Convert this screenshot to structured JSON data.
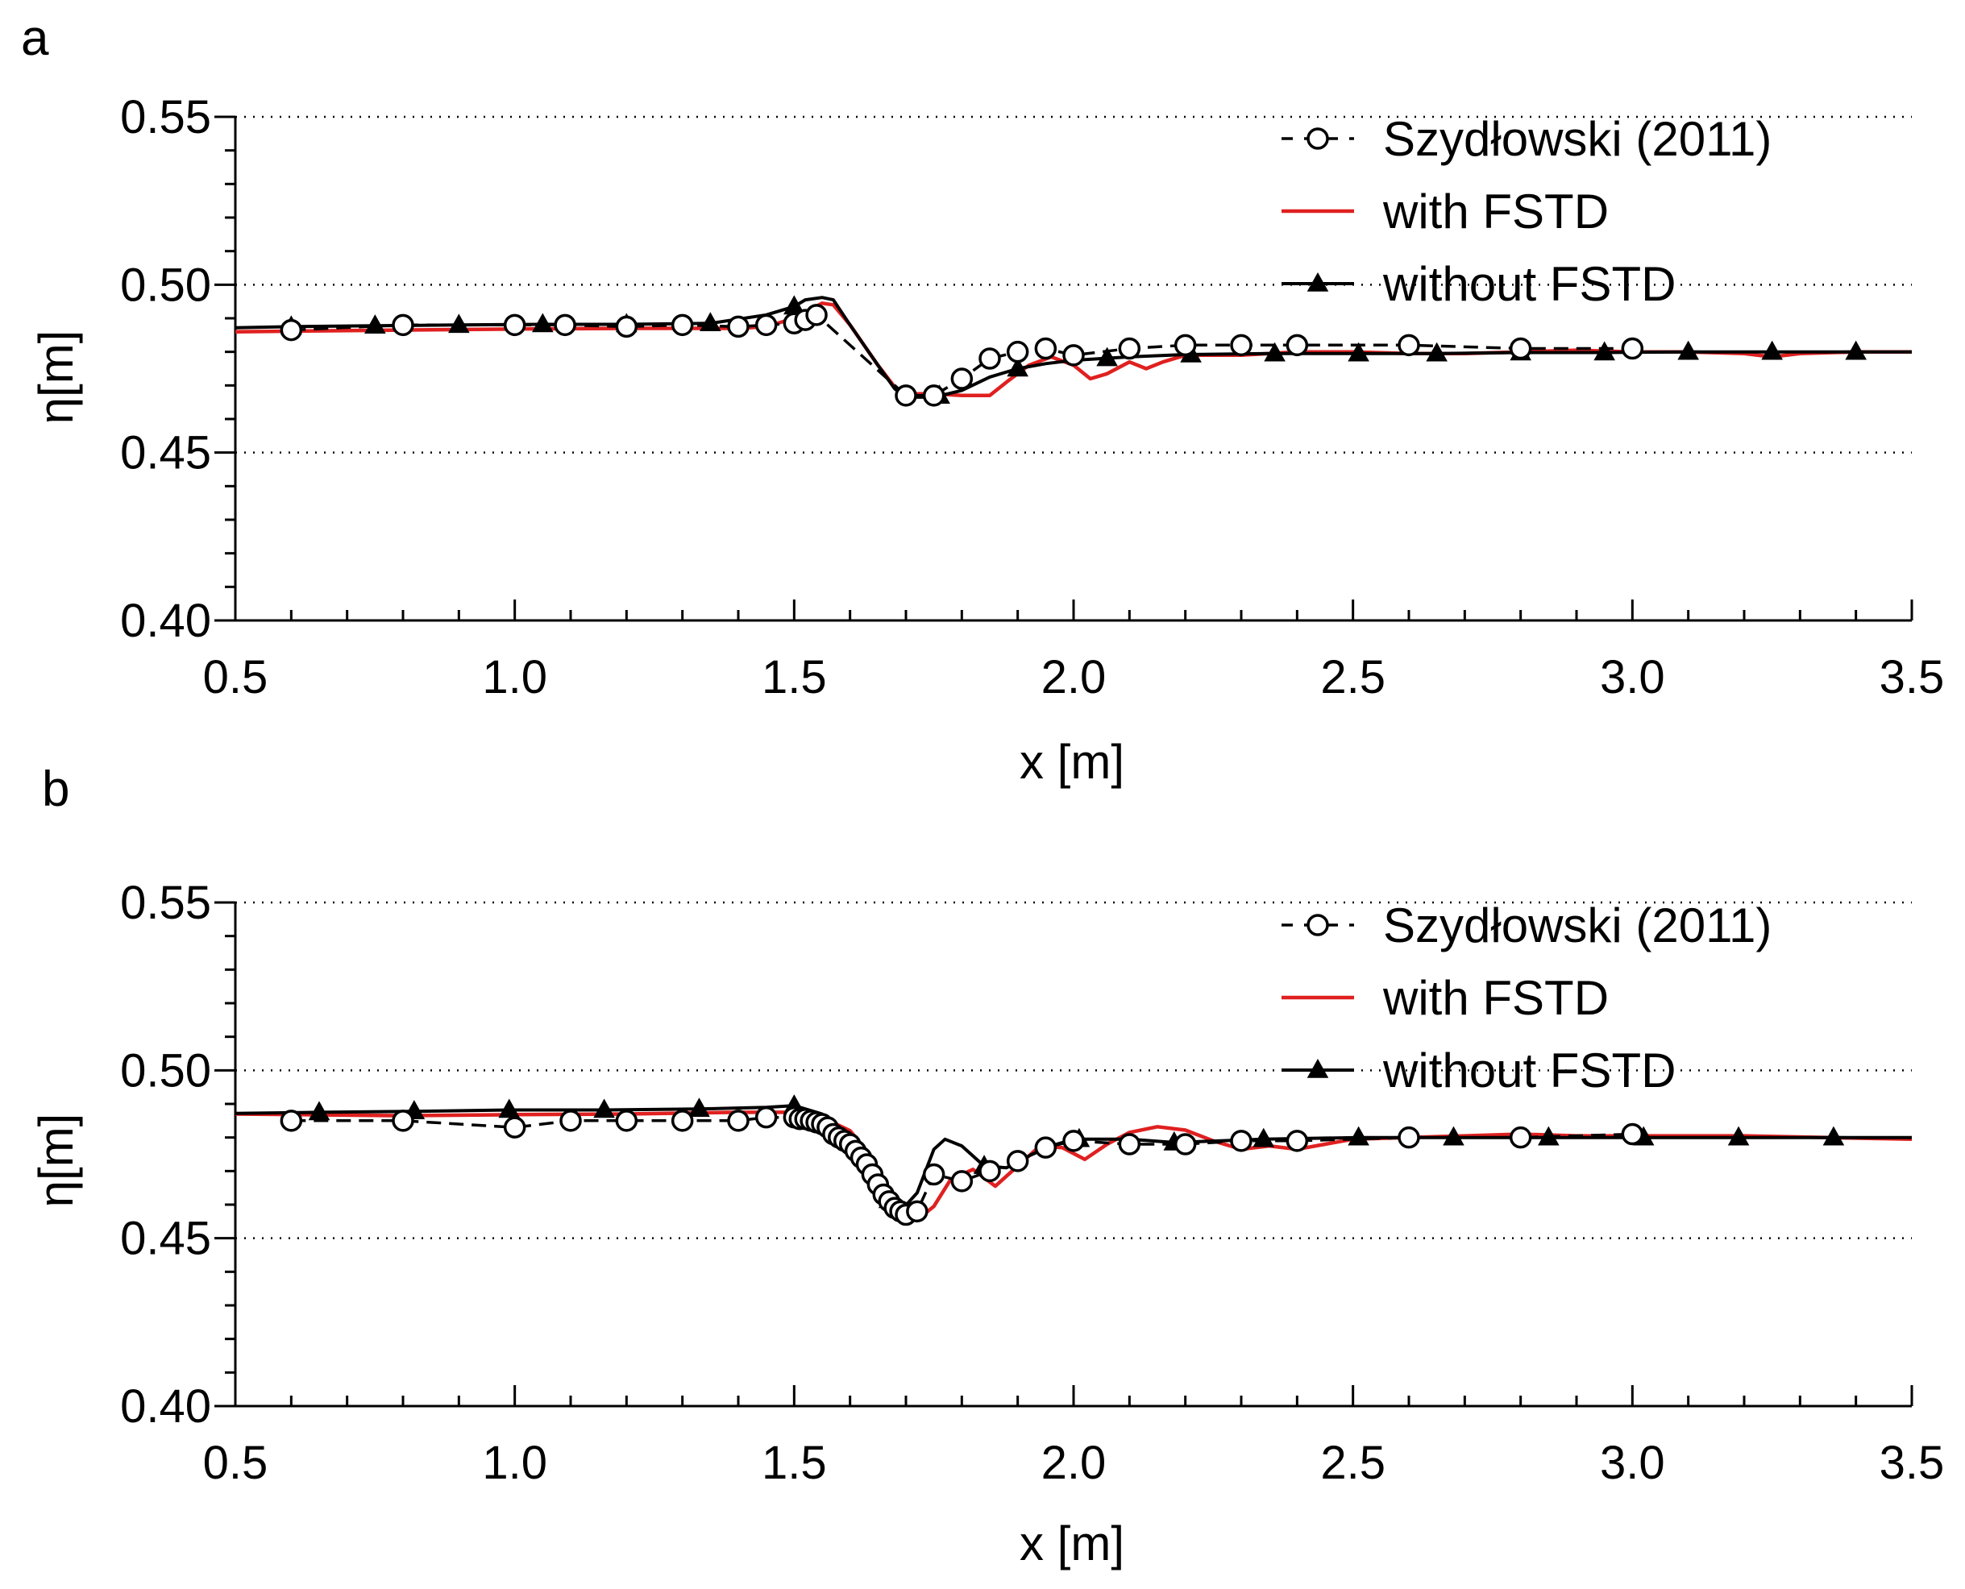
{
  "chart_data": [
    {
      "type": "line",
      "panel_label": "a",
      "title": "",
      "xlabel": "x [m]",
      "ylabel": "η[m]",
      "xlim": [
        0.5,
        3.5
      ],
      "ylim": [
        0.4,
        0.55
      ],
      "xticks": [
        "0.5",
        "1.0",
        "1.5",
        "2.0",
        "2.5",
        "3.0",
        "3.5"
      ],
      "yticks": [
        "0.40",
        "0.45",
        "0.50",
        "0.55"
      ],
      "grid": "horizontal dotted at 0.45, 0.50, 0.55",
      "legend_position": "top-right",
      "series": [
        {
          "name": "Szydłowski (2011)",
          "style": "dashed-line-open-circles",
          "color": "#000000",
          "x": [
            0.6,
            0.8,
            1.0,
            1.09,
            1.2,
            1.3,
            1.4,
            1.45,
            1.5,
            1.52,
            1.54,
            1.7,
            1.75,
            1.8,
            1.85,
            1.9,
            1.95,
            2.0,
            2.1,
            2.2,
            2.3,
            2.4,
            2.6,
            2.8,
            3.0
          ],
          "y": [
            0.4865,
            0.488,
            0.488,
            0.488,
            0.4875,
            0.488,
            0.4875,
            0.488,
            0.4885,
            0.4895,
            0.491,
            0.467,
            0.467,
            0.472,
            0.478,
            0.48,
            0.481,
            0.479,
            0.481,
            0.482,
            0.482,
            0.482,
            0.482,
            0.481,
            0.481
          ]
        },
        {
          "name": "with FSTD",
          "style": "solid-line",
          "color": "#e02020",
          "x": [
            0.5,
            0.8,
            1.0,
            1.2,
            1.4,
            1.45,
            1.5,
            1.55,
            1.57,
            1.6,
            1.65,
            1.68,
            1.7,
            1.75,
            1.8,
            1.85,
            1.88,
            1.92,
            1.96,
            2.0,
            2.03,
            2.06,
            2.1,
            2.13,
            2.16,
            2.2,
            2.3,
            2.4,
            2.5,
            2.6,
            2.7,
            2.8,
            2.9,
            3.0,
            3.1,
            3.2,
            3.25,
            3.3,
            3.4,
            3.5
          ],
          "y": [
            0.486,
            0.4865,
            0.4868,
            0.487,
            0.487,
            0.4875,
            0.49,
            0.4945,
            0.494,
            0.488,
            0.476,
            0.4695,
            0.4675,
            0.4675,
            0.467,
            0.467,
            0.471,
            0.476,
            0.4785,
            0.476,
            0.472,
            0.4735,
            0.477,
            0.475,
            0.477,
            0.479,
            0.479,
            0.48,
            0.48,
            0.4795,
            0.4795,
            0.48,
            0.4805,
            0.48,
            0.48,
            0.4795,
            0.4785,
            0.4795,
            0.48,
            0.48
          ]
        },
        {
          "name": "without FSTD",
          "style": "solid-line-filled-triangles",
          "color": "#000000",
          "x": [
            0.5,
            0.6,
            0.75,
            0.9,
            1.05,
            1.2,
            1.35,
            1.45,
            1.5,
            1.52,
            1.55,
            1.57,
            1.6,
            1.65,
            1.68,
            1.7,
            1.75,
            1.8,
            1.85,
            1.9,
            1.95,
            2.0,
            2.05,
            2.1,
            2.2,
            2.35,
            2.5,
            2.65,
            2.8,
            2.95,
            3.1,
            3.25,
            3.4,
            3.5
          ],
          "y": [
            0.4872,
            0.4875,
            0.4878,
            0.488,
            0.4882,
            0.4882,
            0.4885,
            0.491,
            0.4935,
            0.4955,
            0.4962,
            0.4955,
            0.488,
            0.476,
            0.469,
            0.4665,
            0.4665,
            0.4685,
            0.4725,
            0.475,
            0.4765,
            0.4775,
            0.478,
            0.4785,
            0.4792,
            0.4795,
            0.4795,
            0.4795,
            0.4798,
            0.4798,
            0.48,
            0.48,
            0.48,
            0.48
          ],
          "marker_x": [
            0.6,
            0.75,
            0.9,
            1.05,
            1.2,
            1.35,
            1.5,
            1.76,
            1.9,
            2.06,
            2.21,
            2.36,
            2.51,
            2.65,
            2.8,
            2.95,
            3.1,
            3.25,
            3.4
          ]
        }
      ]
    },
    {
      "type": "line",
      "panel_label": "b",
      "title": "",
      "xlabel": "x [m]",
      "ylabel": "η[m]",
      "xlim": [
        0.5,
        3.5
      ],
      "ylim": [
        0.4,
        0.55
      ],
      "xticks": [
        "0.5",
        "1.0",
        "1.5",
        "2.0",
        "2.5",
        "3.0",
        "3.5"
      ],
      "yticks": [
        "0.40",
        "0.45",
        "0.50",
        "0.55"
      ],
      "grid": "horizontal dotted at 0.45, 0.50, 0.55",
      "legend_position": "top-right",
      "series": [
        {
          "name": "Szydłowski (2011)",
          "style": "dashed-line-open-circles",
          "color": "#000000",
          "x": [
            0.6,
            0.8,
            1.0,
            1.1,
            1.2,
            1.3,
            1.4,
            1.45,
            1.5,
            1.51,
            1.52,
            1.53,
            1.54,
            1.55,
            1.56,
            1.57,
            1.58,
            1.59,
            1.6,
            1.61,
            1.62,
            1.63,
            1.64,
            1.65,
            1.66,
            1.67,
            1.68,
            1.69,
            1.7,
            1.72,
            1.75,
            1.8,
            1.85,
            1.9,
            1.95,
            2.0,
            2.1,
            2.2,
            2.3,
            2.4,
            2.6,
            2.8,
            3.0
          ],
          "y": [
            0.485,
            0.485,
            0.483,
            0.485,
            0.485,
            0.485,
            0.485,
            0.486,
            0.486,
            0.4855,
            0.4855,
            0.485,
            0.4845,
            0.484,
            0.483,
            0.481,
            0.48,
            0.479,
            0.478,
            0.476,
            0.474,
            0.472,
            0.469,
            0.466,
            0.463,
            0.461,
            0.459,
            0.458,
            0.457,
            0.458,
            0.469,
            0.467,
            0.47,
            0.473,
            0.477,
            0.479,
            0.478,
            0.478,
            0.479,
            0.479,
            0.48,
            0.48,
            0.481
          ]
        },
        {
          "name": "with FSTD",
          "style": "solid-line",
          "color": "#e02020",
          "x": [
            0.5,
            0.8,
            1.0,
            1.2,
            1.4,
            1.5,
            1.55,
            1.6,
            1.63,
            1.66,
            1.69,
            1.72,
            1.75,
            1.78,
            1.82,
            1.86,
            1.9,
            1.94,
            1.98,
            2.02,
            2.06,
            2.1,
            2.15,
            2.2,
            2.25,
            2.3,
            2.35,
            2.4,
            2.45,
            2.5,
            2.7,
            2.8,
            2.9,
            3.0,
            3.2,
            3.5
          ],
          "y": [
            0.487,
            0.4865,
            0.4868,
            0.487,
            0.4875,
            0.4875,
            0.486,
            0.482,
            0.476,
            0.466,
            0.4575,
            0.4555,
            0.4595,
            0.4675,
            0.4705,
            0.4655,
            0.4715,
            0.4775,
            0.477,
            0.4735,
            0.478,
            0.4815,
            0.4832,
            0.4822,
            0.479,
            0.4765,
            0.4775,
            0.4765,
            0.478,
            0.4795,
            0.4805,
            0.481,
            0.4805,
            0.4805,
            0.4805,
            0.4795
          ]
        },
        {
          "name": "without FSTD",
          "style": "solid-line-filled-triangles",
          "color": "#000000",
          "x": [
            0.5,
            0.65,
            0.82,
            0.99,
            1.16,
            1.33,
            1.45,
            1.5,
            1.55,
            1.58,
            1.62,
            1.66,
            1.69,
            1.72,
            1.75,
            1.77,
            1.8,
            1.84,
            1.88,
            1.92,
            1.96,
            2.0,
            2.05,
            2.1,
            2.18,
            2.34,
            2.51,
            2.68,
            2.85,
            3.02,
            3.19,
            3.36,
            3.5
          ],
          "y": [
            0.4872,
            0.4875,
            0.4878,
            0.4882,
            0.4882,
            0.4885,
            0.489,
            0.4895,
            0.487,
            0.483,
            0.474,
            0.463,
            0.458,
            0.4635,
            0.4765,
            0.4795,
            0.4775,
            0.4715,
            0.471,
            0.4745,
            0.4775,
            0.4795,
            0.4795,
            0.4795,
            0.4785,
            0.4795,
            0.48,
            0.48,
            0.48,
            0.48,
            0.48,
            0.48,
            0.48
          ],
          "marker_x": [
            0.65,
            0.82,
            0.99,
            1.16,
            1.33,
            1.5,
            1.67,
            1.84,
            2.01,
            2.18,
            2.34,
            2.51,
            2.68,
            2.85,
            3.02,
            3.19,
            3.36
          ]
        }
      ]
    }
  ]
}
